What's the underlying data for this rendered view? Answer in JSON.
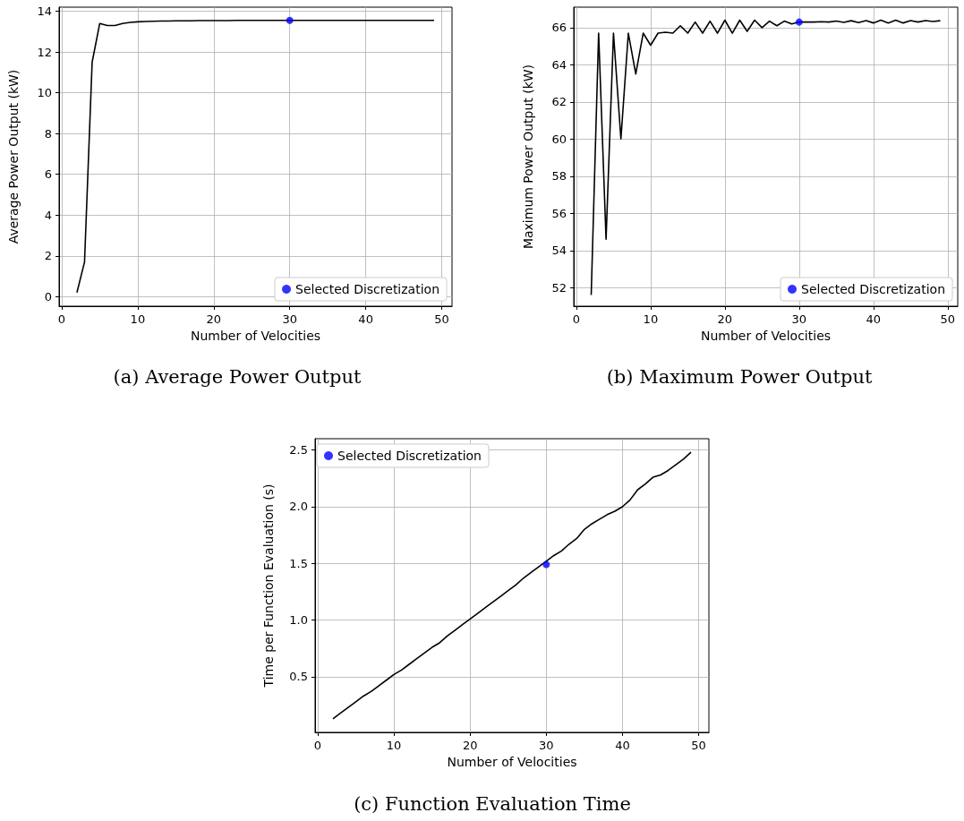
{
  "chart_data": [
    {
      "type": "line",
      "title": "(a) Average Power Output",
      "xlabel": "Number of Velocities",
      "ylabel": "Average Power Output (kW)",
      "xlim": [
        -0.35,
        51.35
      ],
      "xticks": [
        0,
        10,
        20,
        30,
        40,
        50
      ],
      "ylim": [
        -0.47,
        14.2
      ],
      "yticks": [
        0,
        2,
        4,
        6,
        8,
        10,
        12,
        14
      ],
      "grid": true,
      "legend": "bottom right",
      "x": [
        2,
        3,
        4,
        5,
        6,
        7,
        8,
        9,
        10,
        11,
        12,
        13,
        14,
        15,
        16,
        17,
        18,
        19,
        20,
        21,
        22,
        23,
        24,
        25,
        26,
        27,
        28,
        29,
        30,
        31,
        32,
        33,
        34,
        35,
        36,
        37,
        38,
        39,
        40,
        41,
        42,
        43,
        44,
        45,
        46,
        47,
        48,
        49
      ],
      "series": [
        {
          "color": "#000000",
          "values": [
            0.2,
            1.7,
            11.5,
            13.4,
            13.3,
            13.3,
            13.4,
            13.45,
            13.48,
            13.5,
            13.51,
            13.52,
            13.52,
            13.53,
            13.53,
            13.53,
            13.54,
            13.54,
            13.54,
            13.54,
            13.54,
            13.55,
            13.55,
            13.55,
            13.55,
            13.55,
            13.55,
            13.55,
            13.55,
            13.55,
            13.55,
            13.55,
            13.55,
            13.55,
            13.55,
            13.55,
            13.55,
            13.55,
            13.55,
            13.55,
            13.55,
            13.55,
            13.55,
            13.55,
            13.55,
            13.55,
            13.55,
            13.55
          ]
        },
        {
          "type": "scatter",
          "name": "Selected Discretization",
          "color": "#0000ff",
          "marker": "circle",
          "values": [
            null,
            null,
            null,
            null,
            null,
            null,
            null,
            null,
            null,
            null,
            null,
            null,
            null,
            null,
            null,
            null,
            null,
            null,
            null,
            null,
            null,
            null,
            null,
            null,
            null,
            null,
            null,
            null,
            13.55,
            null,
            null,
            null,
            null,
            null,
            null,
            null,
            null,
            null,
            null,
            null,
            null,
            null,
            null,
            null,
            null,
            null,
            null,
            null
          ]
        }
      ]
    },
    {
      "type": "line",
      "title": "(b) Maximum Power Output",
      "xlabel": "Number of Velocities",
      "ylabel": "Maximum Power Output (kW)",
      "xlim": [
        -0.35,
        51.35
      ],
      "xticks": [
        0,
        10,
        20,
        30,
        40,
        50
      ],
      "ylim": [
        51.0,
        67.1
      ],
      "yticks": [
        52,
        54,
        56,
        58,
        60,
        62,
        64,
        66
      ],
      "grid": true,
      "legend": "bottom right",
      "x": [
        2,
        3,
        4,
        5,
        6,
        7,
        8,
        9,
        10,
        11,
        12,
        13,
        14,
        15,
        16,
        17,
        18,
        19,
        20,
        21,
        22,
        23,
        24,
        25,
        26,
        27,
        28,
        29,
        30,
        31,
        32,
        33,
        34,
        35,
        36,
        37,
        38,
        39,
        40,
        41,
        42,
        43,
        44,
        45,
        46,
        47,
        48,
        49
      ],
      "series": [
        {
          "color": "#000000",
          "values": [
            51.6,
            65.7,
            54.6,
            65.7,
            60.0,
            65.7,
            63.5,
            65.7,
            65.05,
            65.7,
            65.75,
            65.7,
            66.1,
            65.7,
            66.3,
            65.7,
            66.35,
            65.7,
            66.4,
            65.7,
            66.4,
            65.8,
            66.4,
            66.0,
            66.35,
            66.1,
            66.35,
            66.2,
            66.3,
            66.3,
            66.3,
            66.32,
            66.3,
            66.35,
            66.28,
            66.37,
            66.27,
            66.38,
            66.25,
            66.4,
            66.25,
            66.4,
            66.25,
            66.38,
            66.3,
            66.38,
            66.33,
            66.37
          ]
        },
        {
          "type": "scatter",
          "name": "Selected Discretization",
          "color": "#0000ff",
          "marker": "circle",
          "values": [
            null,
            null,
            null,
            null,
            null,
            null,
            null,
            null,
            null,
            null,
            null,
            null,
            null,
            null,
            null,
            null,
            null,
            null,
            null,
            null,
            null,
            null,
            null,
            null,
            null,
            null,
            null,
            null,
            66.3,
            null,
            null,
            null,
            null,
            null,
            null,
            null,
            null,
            null,
            null,
            null,
            null,
            null,
            null,
            null,
            null,
            null,
            null,
            null
          ]
        }
      ]
    },
    {
      "type": "line",
      "title": "(c) Function Evaluation Time",
      "xlabel": "Number of Velocities",
      "ylabel": "Time per Function Evaluation (s)",
      "xlim": [
        -0.35,
        51.35
      ],
      "xticks": [
        0,
        10,
        20,
        30,
        40,
        50
      ],
      "ylim": [
        0.01,
        2.6
      ],
      "yticks": [
        0.5,
        {
          "value": 1,
          "label": "1.0"
        },
        1.5,
        {
          "value": 2,
          "label": "2.0"
        },
        2.5
      ],
      "grid": true,
      "legend": "top left",
      "x": [
        2,
        3,
        4,
        5,
        6,
        7,
        8,
        9,
        10,
        11,
        12,
        13,
        14,
        15,
        16,
        17,
        18,
        19,
        20,
        21,
        22,
        23,
        24,
        25,
        26,
        27,
        28,
        29,
        30,
        31,
        32,
        33,
        34,
        35,
        36,
        37,
        38,
        39,
        40,
        41,
        42,
        43,
        44,
        45,
        46,
        47,
        48,
        49
      ],
      "series": [
        {
          "color": "#000000",
          "values": [
            0.13,
            0.18,
            0.23,
            0.28,
            0.33,
            0.37,
            0.42,
            0.47,
            0.52,
            0.56,
            0.61,
            0.66,
            0.71,
            0.76,
            0.8,
            0.86,
            0.91,
            0.96,
            1.01,
            1.06,
            1.11,
            1.16,
            1.21,
            1.26,
            1.31,
            1.37,
            1.42,
            1.47,
            1.52,
            1.57,
            1.61,
            1.67,
            1.72,
            1.8,
            1.85,
            1.89,
            1.93,
            1.96,
            2.0,
            2.06,
            2.15,
            2.2,
            2.26,
            2.28,
            2.32,
            2.37,
            2.42,
            2.48
          ]
        },
        {
          "type": "scatter",
          "name": "Selected Discretization",
          "color": "#0000ff",
          "marker": "circle",
          "values": [
            null,
            null,
            null,
            null,
            null,
            null,
            null,
            null,
            null,
            null,
            null,
            null,
            null,
            null,
            null,
            null,
            null,
            null,
            null,
            null,
            null,
            null,
            null,
            null,
            null,
            null,
            null,
            null,
            1.49,
            null,
            null,
            null,
            null,
            null,
            null,
            null,
            null,
            null,
            null,
            null,
            null,
            null,
            null,
            null,
            null,
            null,
            null,
            null
          ]
        }
      ]
    }
  ]
}
